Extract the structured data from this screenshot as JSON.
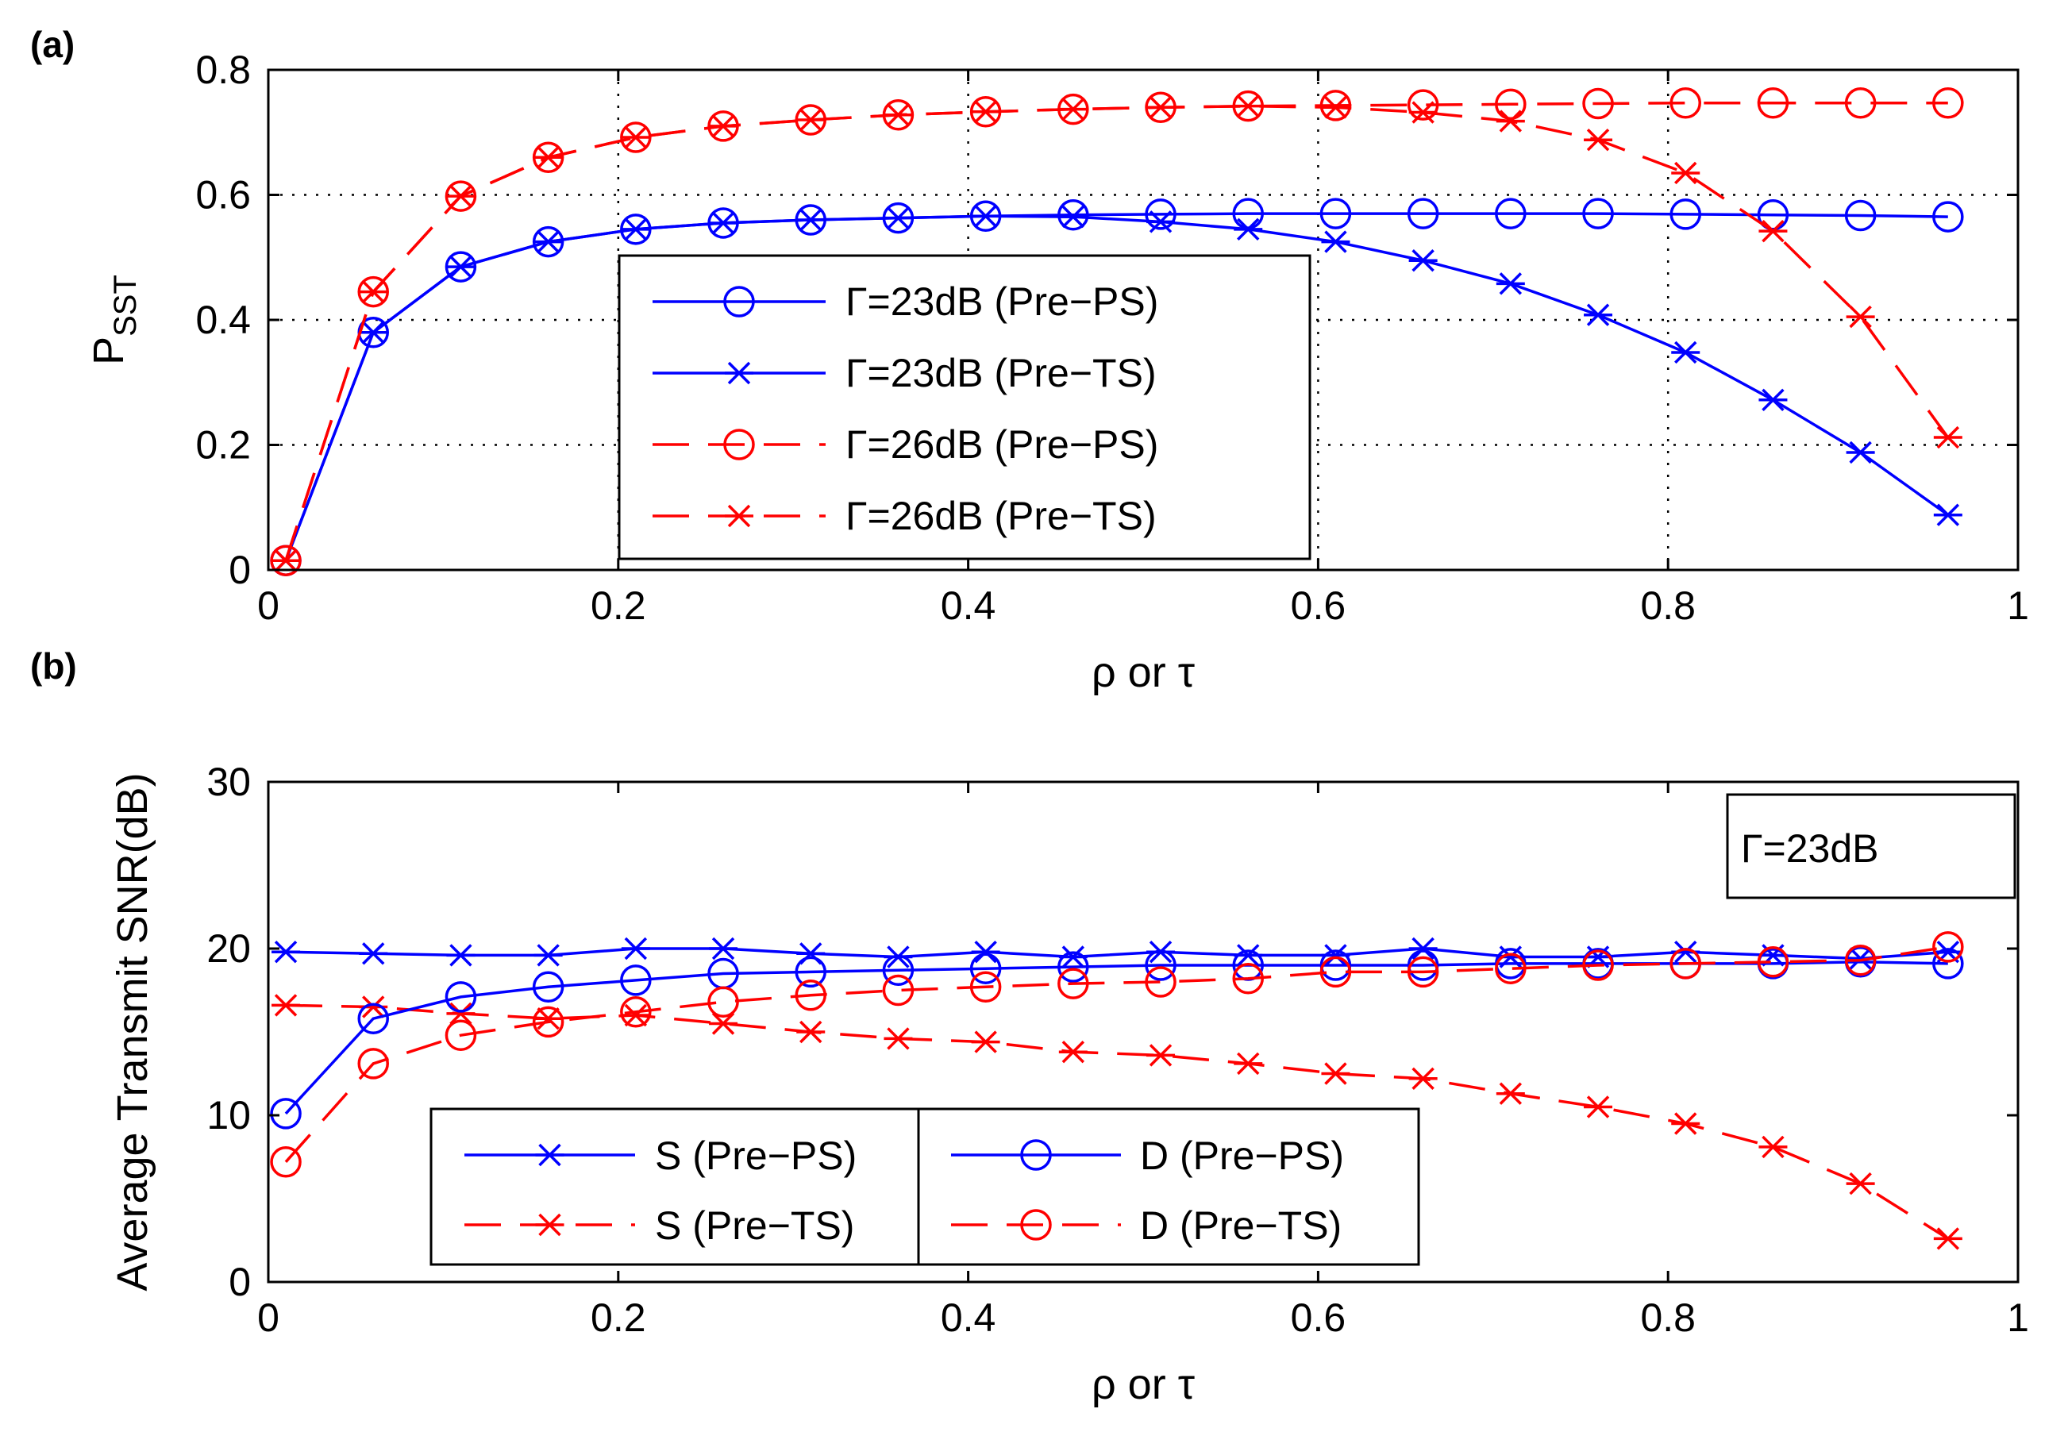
{
  "figure": {
    "panels": [
      "(a)",
      "(b)"
    ]
  },
  "chart_data": [
    {
      "type": "line",
      "panel": "(a)",
      "title": "",
      "xlabel": "ρ or τ",
      "ylabel": "P",
      "ylabel_subscript": "SST",
      "xlim": [
        0,
        1
      ],
      "ylim": [
        0,
        0.8
      ],
      "xticks": [
        "0",
        "0.2",
        "0.4",
        "0.6",
        "0.8",
        "1"
      ],
      "yticks": [
        "0",
        "0.2",
        "0.4",
        "0.6",
        "0.8"
      ],
      "grid": true,
      "legend_position": "center-left",
      "x": [
        0.01,
        0.06,
        0.11,
        0.16,
        0.21,
        0.26,
        0.31,
        0.36,
        0.41,
        0.46,
        0.51,
        0.56,
        0.61,
        0.66,
        0.71,
        0.76,
        0.81,
        0.86,
        0.91,
        0.96
      ],
      "series": [
        {
          "name": "Γ=23dB (Pre−PS)",
          "color": "#0000ff",
          "marker": "circle",
          "dashed": false,
          "values": [
            0.015,
            0.38,
            0.485,
            0.525,
            0.545,
            0.555,
            0.56,
            0.563,
            0.566,
            0.568,
            0.569,
            0.57,
            0.57,
            0.57,
            0.57,
            0.57,
            0.569,
            0.568,
            0.567,
            0.565
          ]
        },
        {
          "name": "Γ=23dB (Pre−TS)",
          "color": "#0000ff",
          "marker": "star",
          "dashed": false,
          "values": [
            0.015,
            0.38,
            0.485,
            0.525,
            0.545,
            0.555,
            0.56,
            0.563,
            0.566,
            0.565,
            0.557,
            0.545,
            0.525,
            0.495,
            0.458,
            0.408,
            0.348,
            0.272,
            0.188,
            0.088
          ]
        },
        {
          "name": "Γ=26dB (Pre−PS)",
          "color": "#ff0000",
          "marker": "circle",
          "dashed": true,
          "values": [
            0.015,
            0.445,
            0.598,
            0.66,
            0.692,
            0.71,
            0.72,
            0.728,
            0.733,
            0.737,
            0.74,
            0.742,
            0.743,
            0.744,
            0.745,
            0.746,
            0.747,
            0.747,
            0.747,
            0.747
          ]
        },
        {
          "name": "Γ=26dB (Pre−TS)",
          "color": "#ff0000",
          "marker": "star",
          "dashed": true,
          "values": [
            0.015,
            0.445,
            0.598,
            0.66,
            0.692,
            0.71,
            0.72,
            0.728,
            0.733,
            0.737,
            0.74,
            0.742,
            0.74,
            0.732,
            0.718,
            0.688,
            0.635,
            0.542,
            0.405,
            0.212
          ]
        }
      ]
    },
    {
      "type": "line",
      "panel": "(b)",
      "title": "",
      "xlabel": "ρ or τ",
      "ylabel": "Average Transmit SNR(dB)",
      "xlim": [
        0,
        1
      ],
      "ylim": [
        0,
        30
      ],
      "xticks": [
        "0",
        "0.2",
        "0.4",
        "0.6",
        "0.8",
        "1"
      ],
      "yticks": [
        "0",
        "10",
        "20",
        "30"
      ],
      "grid": false,
      "annotation": "Γ=23dB",
      "legend_position": "bottom-left",
      "x": [
        0.01,
        0.06,
        0.11,
        0.16,
        0.21,
        0.26,
        0.31,
        0.36,
        0.41,
        0.46,
        0.51,
        0.56,
        0.61,
        0.66,
        0.71,
        0.76,
        0.81,
        0.86,
        0.91,
        0.96
      ],
      "series": [
        {
          "name": "S (Pre−PS)",
          "color": "#0000ff",
          "marker": "star",
          "dashed": false,
          "values": [
            19.8,
            19.7,
            19.6,
            19.6,
            20.0,
            20.0,
            19.7,
            19.5,
            19.8,
            19.5,
            19.8,
            19.6,
            19.6,
            20.0,
            19.5,
            19.5,
            19.8,
            19.6,
            19.4,
            19.8
          ]
        },
        {
          "name": "S (Pre−TS)",
          "color": "#ff0000",
          "marker": "star",
          "dashed": true,
          "values": [
            16.6,
            16.5,
            16.1,
            15.8,
            16.0,
            15.5,
            15.0,
            14.6,
            14.4,
            13.8,
            13.6,
            13.1,
            12.5,
            12.2,
            11.3,
            10.5,
            9.5,
            8.1,
            5.9,
            2.6
          ]
        },
        {
          "name": "D (Pre−PS)",
          "color": "#0000ff",
          "marker": "circle",
          "dashed": false,
          "values": [
            10.1,
            15.8,
            17.1,
            17.7,
            18.1,
            18.5,
            18.6,
            18.7,
            18.8,
            18.9,
            19.0,
            19.0,
            19.0,
            19.0,
            19.1,
            19.1,
            19.1,
            19.1,
            19.2,
            19.1
          ]
        },
        {
          "name": "D (Pre−TS)",
          "color": "#ff0000",
          "marker": "circle",
          "dashed": true,
          "values": [
            7.2,
            13.1,
            14.8,
            15.6,
            16.2,
            16.8,
            17.2,
            17.5,
            17.7,
            17.9,
            18.0,
            18.2,
            18.6,
            18.6,
            18.8,
            19.0,
            19.1,
            19.2,
            19.3,
            20.1
          ]
        }
      ]
    }
  ]
}
